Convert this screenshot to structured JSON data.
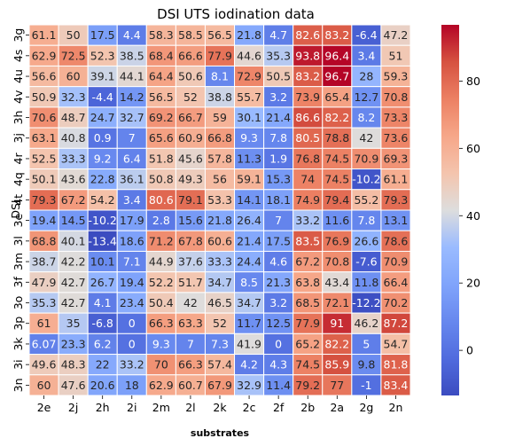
{
  "chart_data": {
    "type": "heatmap",
    "title": "DSI UTS iodination data",
    "xlabel": "substrates",
    "ylabel": "DSI",
    "columns": [
      "2e",
      "2j",
      "2h",
      "2i",
      "2m",
      "2l",
      "2k",
      "2c",
      "2f",
      "2b",
      "2a",
      "2g",
      "2n"
    ],
    "rows": [
      "3g",
      "4s",
      "4u",
      "4v",
      "3h",
      "3j",
      "4r",
      "4q",
      "4t",
      "3e",
      "3l",
      "3m",
      "3f",
      "3o",
      "3p",
      "3k",
      "3i",
      "3n"
    ],
    "values": [
      [
        61.1,
        50,
        17.5,
        4.4,
        58.3,
        58.5,
        56.5,
        21.8,
        4.7,
        82.6,
        83.2,
        -6.4,
        47.2
      ],
      [
        62.9,
        72.5,
        52.3,
        38.5,
        68.4,
        66.6,
        77.9,
        44.6,
        35.3,
        93.8,
        96.4,
        3.4,
        51
      ],
      [
        56.6,
        60,
        39.1,
        44.1,
        64.4,
        50.6,
        8.1,
        72.9,
        50.5,
        83.2,
        96.7,
        28,
        59.3
      ],
      [
        50.9,
        32.3,
        -4.4,
        14.2,
        56.5,
        52,
        38.8,
        55.7,
        3.2,
        73.9,
        65.4,
        12.7,
        70.8
      ],
      [
        70.6,
        48.7,
        24.7,
        32.7,
        69.2,
        66.7,
        59,
        30.1,
        21.4,
        86.6,
        82.2,
        8.2,
        73.3
      ],
      [
        63.1,
        40.8,
        0.9,
        7,
        65.6,
        60.9,
        66.8,
        9.3,
        7.8,
        80.5,
        78.8,
        42,
        73.6
      ],
      [
        52.5,
        33.3,
        9.2,
        6.4,
        51.8,
        45.6,
        57.8,
        11.3,
        1.9,
        76.8,
        74.5,
        70.9,
        69.3
      ],
      [
        50.1,
        43.6,
        22.8,
        36.1,
        50.8,
        49.3,
        56,
        59.1,
        15.3,
        74,
        74.5,
        -10.2,
        61.1
      ],
      [
        79.3,
        67.2,
        54.2,
        3.4,
        80.6,
        79.1,
        53.3,
        14.1,
        18.1,
        74.9,
        79.4,
        55.2,
        79.3
      ],
      [
        19.4,
        14.5,
        -10.2,
        17.9,
        2.8,
        15.6,
        21.8,
        26.4,
        7,
        33.2,
        11.6,
        7.8,
        13.1
      ],
      [
        68.8,
        40.1,
        -13.4,
        18.6,
        71.2,
        67.8,
        60.6,
        21.4,
        17.5,
        83.5,
        76.9,
        26.6,
        78.6
      ],
      [
        38.7,
        42.2,
        10.1,
        7.1,
        44.9,
        37.6,
        33.3,
        24.4,
        4.6,
        67.2,
        70.8,
        -7.6,
        70.9
      ],
      [
        47.9,
        42.7,
        26.7,
        19.4,
        52.2,
        51.7,
        34.7,
        8.5,
        21.3,
        63.8,
        43.4,
        11.8,
        66.4
      ],
      [
        35.3,
        42.7,
        4.1,
        23.4,
        50.4,
        42,
        46.5,
        34.7,
        3.2,
        68.5,
        72.1,
        -12.2,
        70.2
      ],
      [
        61,
        35,
        -6.8,
        0,
        66.3,
        63.3,
        52,
        11.7,
        12.5,
        77.9,
        91,
        46.2,
        87.2
      ],
      [
        6.07,
        23.3,
        6.2,
        0,
        9.3,
        7,
        7.3,
        41.9,
        0,
        65.2,
        82.2,
        5,
        54.7
      ],
      [
        49.6,
        48.3,
        22,
        33.2,
        70,
        66.3,
        57.4,
        4.2,
        4.3,
        74.5,
        85.9,
        9.8,
        81.8
      ],
      [
        60,
        47.6,
        20.6,
        18,
        62.9,
        60.7,
        67.9,
        32.9,
        11.4,
        79.2,
        77,
        -1,
        83.4
      ]
    ],
    "vmin": -13.4,
    "vmax": 96.7,
    "colormap": "coolwarm",
    "colorbar_ticks": [
      0,
      20,
      40,
      60,
      80
    ],
    "grid": true
  }
}
